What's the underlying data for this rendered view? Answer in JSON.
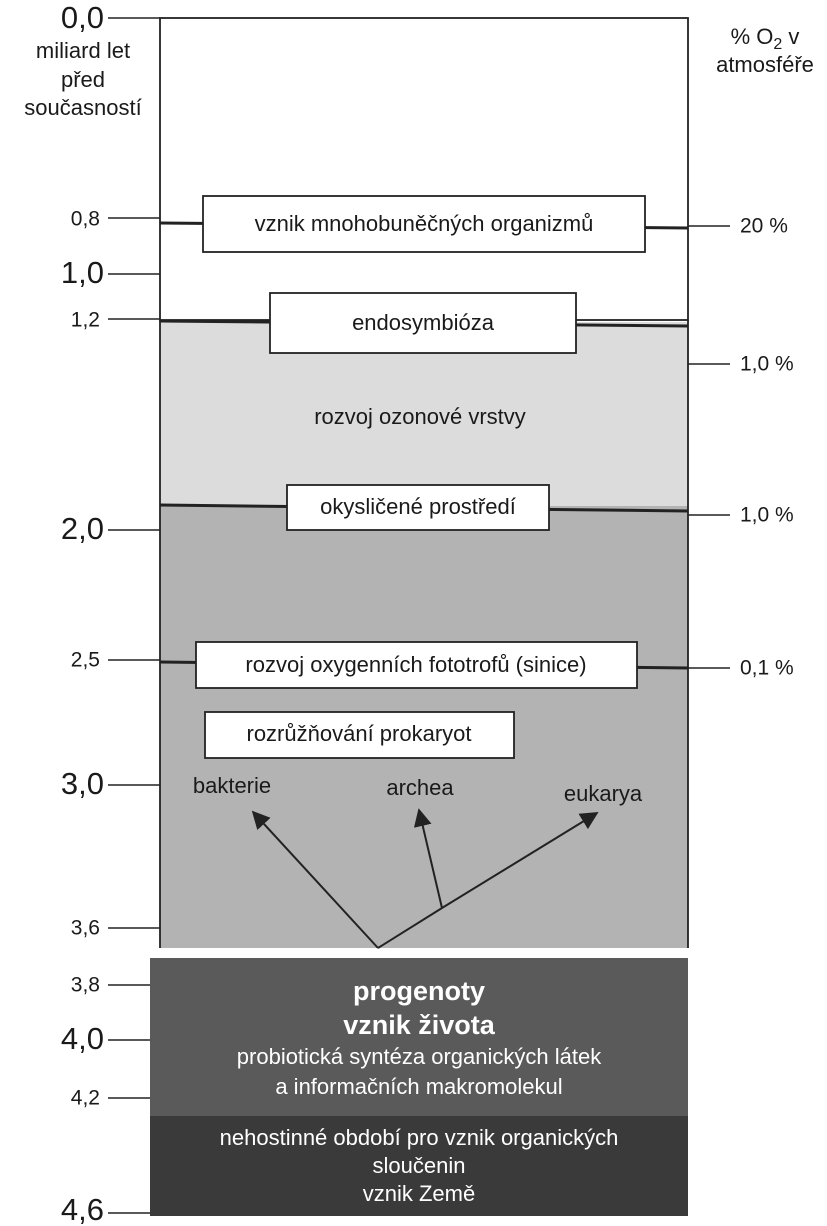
{
  "left_axis": {
    "title": [
      "miliard let",
      "před",
      "současností"
    ],
    "ticks": [
      "0,0",
      "0,8",
      "1,0",
      "1,2",
      "2,0",
      "2,5",
      "3,0",
      "3,6",
      "3,8",
      "4,0",
      "4,2",
      "4,6"
    ]
  },
  "right_axis": {
    "title": [
      "% O",
      "2",
      " v"
    ],
    "title_line2": "atmosféře",
    "ticks": [
      "20 %",
      "1,0 %",
      "1,0 %",
      "0,1 %"
    ]
  },
  "events": [
    "vznik mnohobuněčných organizmů",
    "endosymbióza",
    "rozvoj ozonové vrstvy",
    "okysličené prostředí",
    "rozvoj oxygenních fototrofů (sinice)",
    "rozrůžňování prokaryot"
  ],
  "branches": [
    "bakterie",
    "archea",
    "eukarya"
  ],
  "progenoty": [
    "progenoty",
    "vznik života",
    "probiotická syntéza organických látek",
    "a informačních makromolekul"
  ],
  "bottom": [
    "nehostinné období pro vznik organických",
    "sloučenin",
    "vznik Země"
  ]
}
